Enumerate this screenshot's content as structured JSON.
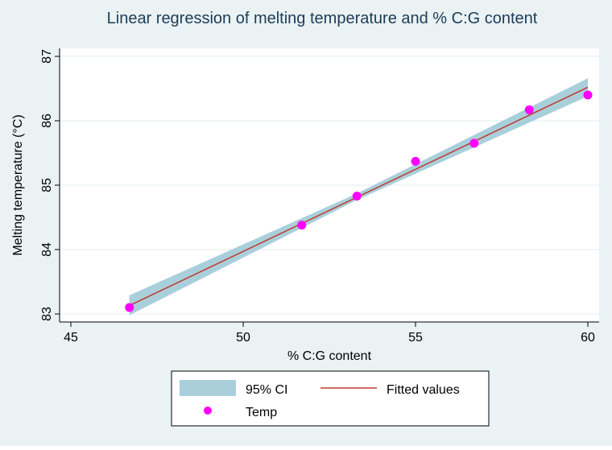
{
  "chart_data": {
    "type": "scatter",
    "title": "Linear regression of melting temperature and % C:G content",
    "xlabel": "% C:G content",
    "ylabel": "Melting temperature (°C)",
    "xlim": [
      45,
      60
    ],
    "ylim": [
      83,
      87
    ],
    "x_ticks": [
      45,
      50,
      55,
      60
    ],
    "y_ticks": [
      83,
      84,
      85,
      86,
      87
    ],
    "grid": true,
    "series": [
      {
        "name": "Temp",
        "kind": "scatter",
        "color": "#ff00ff",
        "points": [
          {
            "x": 46.7,
            "y": 83.1
          },
          {
            "x": 51.7,
            "y": 84.38
          },
          {
            "x": 53.3,
            "y": 84.83
          },
          {
            "x": 55.0,
            "y": 85.37
          },
          {
            "x": 56.7,
            "y": 85.65
          },
          {
            "x": 58.3,
            "y": 86.17
          },
          {
            "x": 60.0,
            "y": 86.4
          }
        ]
      },
      {
        "name": "Fitted values",
        "kind": "line",
        "color": "#c0392b",
        "points": [
          {
            "x": 46.7,
            "y": 83.13
          },
          {
            "x": 60.0,
            "y": 86.52
          }
        ]
      },
      {
        "name": "95% CI",
        "kind": "band",
        "color": "#a9cfdb",
        "lower": [
          {
            "x": 46.7,
            "y": 82.98
          },
          {
            "x": 53.3,
            "y": 84.77
          },
          {
            "x": 60.0,
            "y": 86.38
          }
        ],
        "upper": [
          {
            "x": 46.7,
            "y": 83.29
          },
          {
            "x": 53.3,
            "y": 84.87
          },
          {
            "x": 60.0,
            "y": 86.66
          }
        ]
      }
    ],
    "legend": {
      "position": "bottom",
      "entries": [
        {
          "label": "95% CI",
          "kind": "band",
          "color": "#a9cfdb"
        },
        {
          "label": "Fitted values",
          "kind": "line",
          "color": "#c0392b"
        },
        {
          "label": "Temp",
          "kind": "marker",
          "color": "#ff00ff"
        }
      ]
    }
  }
}
